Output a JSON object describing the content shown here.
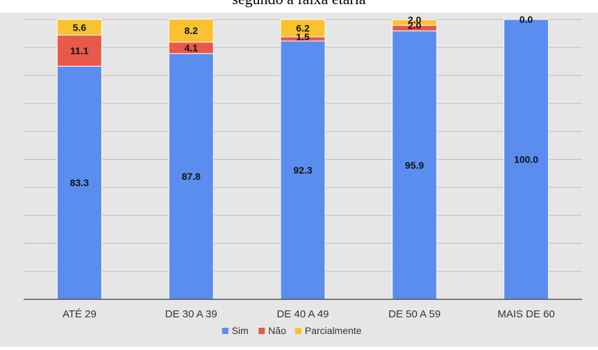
{
  "chart_data": {
    "type": "bar",
    "stacked": true,
    "title": "segundo a faixa etária",
    "xlabel": "",
    "ylabel": "",
    "ylim": [
      0,
      100
    ],
    "grid": true,
    "legend_position": "bottom",
    "categories": [
      "ATÉ 29",
      "DE 30 A 39",
      "DE 40 A 49",
      "DE 50 A 59",
      "MAIS DE 60"
    ],
    "series": [
      {
        "name": "Sim",
        "color": "#5B8DEF",
        "values": [
          83.3,
          87.8,
          92.3,
          95.9,
          100.0
        ],
        "labels": [
          "83.3",
          "87.8",
          "92.3",
          "95.9",
          "100.0"
        ]
      },
      {
        "name": "Não",
        "color": "#E8594A",
        "values": [
          11.1,
          4.1,
          1.5,
          2.0,
          0.0
        ],
        "labels": [
          "11.1",
          "4.1",
          "1.5",
          "2.0",
          ""
        ]
      },
      {
        "name": "Parcialmente",
        "color": "#F9C22E",
        "values": [
          5.6,
          8.2,
          6.2,
          2.0,
          0.0
        ],
        "labels": [
          "5.6",
          "8.2",
          "6.2",
          "2.0",
          "0.0"
        ]
      }
    ]
  }
}
